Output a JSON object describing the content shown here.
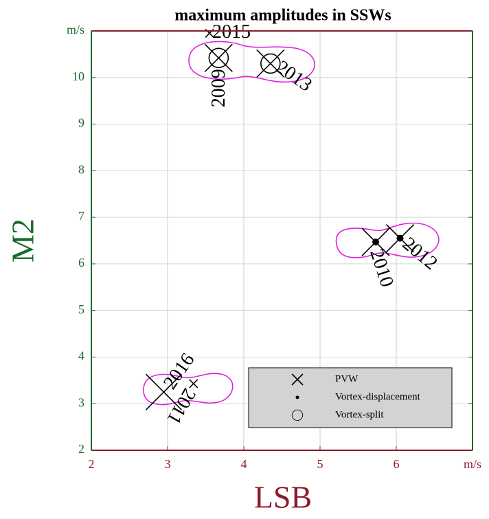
{
  "chart_data": {
    "type": "scatter",
    "title": "maximum amplitudes  in SSWs",
    "x_label": "LSB",
    "y_label": "M2",
    "xlim": [
      2,
      7
    ],
    "ylim": [
      2,
      11
    ],
    "xticks": [
      2,
      3,
      4,
      5,
      6,
      {
        "value": 7,
        "label": "m/s"
      }
    ],
    "yticks": [
      2,
      3,
      4,
      5,
      6,
      7,
      8,
      9,
      10,
      {
        "value": 11,
        "label": "m/s"
      }
    ],
    "grid": true,
    "legend": "lower right",
    "series": [
      {
        "name": "PVW",
        "marker": "x",
        "color": "#000000",
        "x": [
          3.67,
          3.55,
          4.35,
          5.73,
          6.05,
          2.95,
          3.34
        ],
        "y": [
          10.42,
          10.95,
          10.3,
          6.47,
          6.55,
          3.25,
          3.43
        ],
        "labels": [
          "2009",
          "2015",
          "2013",
          "2010",
          "2012",
          "2016",
          "2011"
        ]
      },
      {
        "name": "Vortex-displacement",
        "marker": "dot",
        "color": "#000000",
        "x": [
          5.73,
          6.05
        ],
        "y": [
          6.47,
          6.55
        ]
      },
      {
        "name": "Vortex-split",
        "marker": "circle",
        "color": "#000000",
        "x": [
          3.67,
          4.35
        ],
        "y": [
          10.42,
          10.3
        ]
      }
    ]
  }
}
